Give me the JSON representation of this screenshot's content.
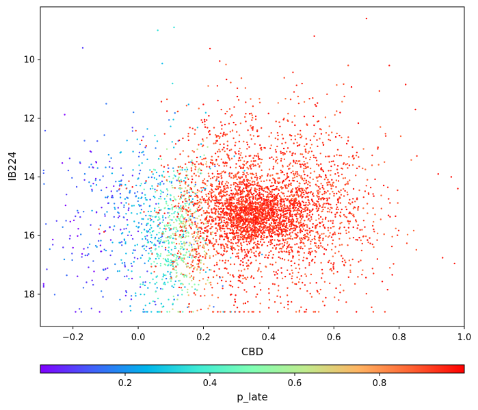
{
  "chart_data": {
    "type": "scatter",
    "title": "",
    "xlabel": "CBD",
    "ylabel": "IB224",
    "xlim": [
      -0.3,
      1.0
    ],
    "ylim": [
      19.1,
      8.2
    ],
    "y_inverted": true,
    "grid": false,
    "x_ticks": [
      "−0.2",
      "0.0",
      "0.2",
      "0.4",
      "0.6",
      "0.8",
      "1.0"
    ],
    "x_tick_values": [
      -0.2,
      0.0,
      0.2,
      0.4,
      0.6,
      0.8,
      1.0
    ],
    "y_ticks": [
      "10",
      "12",
      "14",
      "16",
      "18"
    ],
    "y_tick_values": [
      10,
      12,
      14,
      16,
      18
    ],
    "colorbar": {
      "label": "p_late",
      "orientation": "horizontal",
      "placement": "bottom",
      "range": [
        0.0,
        1.0
      ],
      "ticks": [
        "0.2",
        "0.4",
        "0.6",
        "0.8"
      ],
      "tick_values": [
        0.2,
        0.4,
        0.6,
        0.8
      ],
      "colormap": "rainbow",
      "stops": [
        "#8000ff",
        "#4062fa",
        "#00b5eb",
        "#40ecd4",
        "#80ffb4",
        "#c0eb8d",
        "#ffb462",
        "#ff6232",
        "#ff0000"
      ]
    },
    "marker": {
      "shape": "circle",
      "approx_point_count": 5000
    },
    "series": [
      {
        "population": "early",
        "x_center": 0.0,
        "y_center": 15.5,
        "x_spread": 0.12,
        "y_spread": 1.6,
        "p_late_range": [
          0.0,
          0.25
        ],
        "approx_count": 500
      },
      {
        "population": "intermediate",
        "x_center": 0.12,
        "y_center": 16.0,
        "x_spread": 0.06,
        "y_spread": 1.3,
        "p_late_range": [
          0.35,
          0.7
        ],
        "approx_count": 600
      },
      {
        "population": "late_core",
        "x_center": 0.36,
        "y_center": 15.3,
        "x_spread": 0.08,
        "y_spread": 0.5,
        "p_late_range": [
          0.9,
          1.0
        ],
        "approx_count": 1500
      },
      {
        "population": "late_broad",
        "x_center": 0.38,
        "y_center": 15.0,
        "x_spread": 0.14,
        "y_spread": 1.6,
        "p_late_range": [
          0.85,
          1.0
        ],
        "approx_count": 2400
      }
    ],
    "outliers": [
      {
        "x": 0.7,
        "y": 8.6
      },
      {
        "x": 0.11,
        "y": 8.9
      },
      {
        "x": 0.06,
        "y": 9.0
      },
      {
        "x": 0.54,
        "y": 9.2
      },
      {
        "x": -0.17,
        "y": 9.6
      },
      {
        "x": 0.25,
        "y": 10.05
      },
      {
        "x": 0.77,
        "y": 10.2
      },
      {
        "x": 0.92,
        "y": 13.9
      },
      {
        "x": 0.96,
        "y": 14.0
      },
      {
        "x": 0.98,
        "y": 14.4
      },
      {
        "x": -0.29,
        "y": 17.7
      },
      {
        "x": -0.28,
        "y": 17.15
      },
      {
        "x": -0.25,
        "y": 15.5
      },
      {
        "x": -0.22,
        "y": 14.6
      },
      {
        "x": -0.18,
        "y": 18.5
      },
      {
        "x": 0.97,
        "y": 16.95
      },
      {
        "x": 0.85,
        "y": 11.7
      },
      {
        "x": 0.82,
        "y": 10.85
      }
    ]
  }
}
